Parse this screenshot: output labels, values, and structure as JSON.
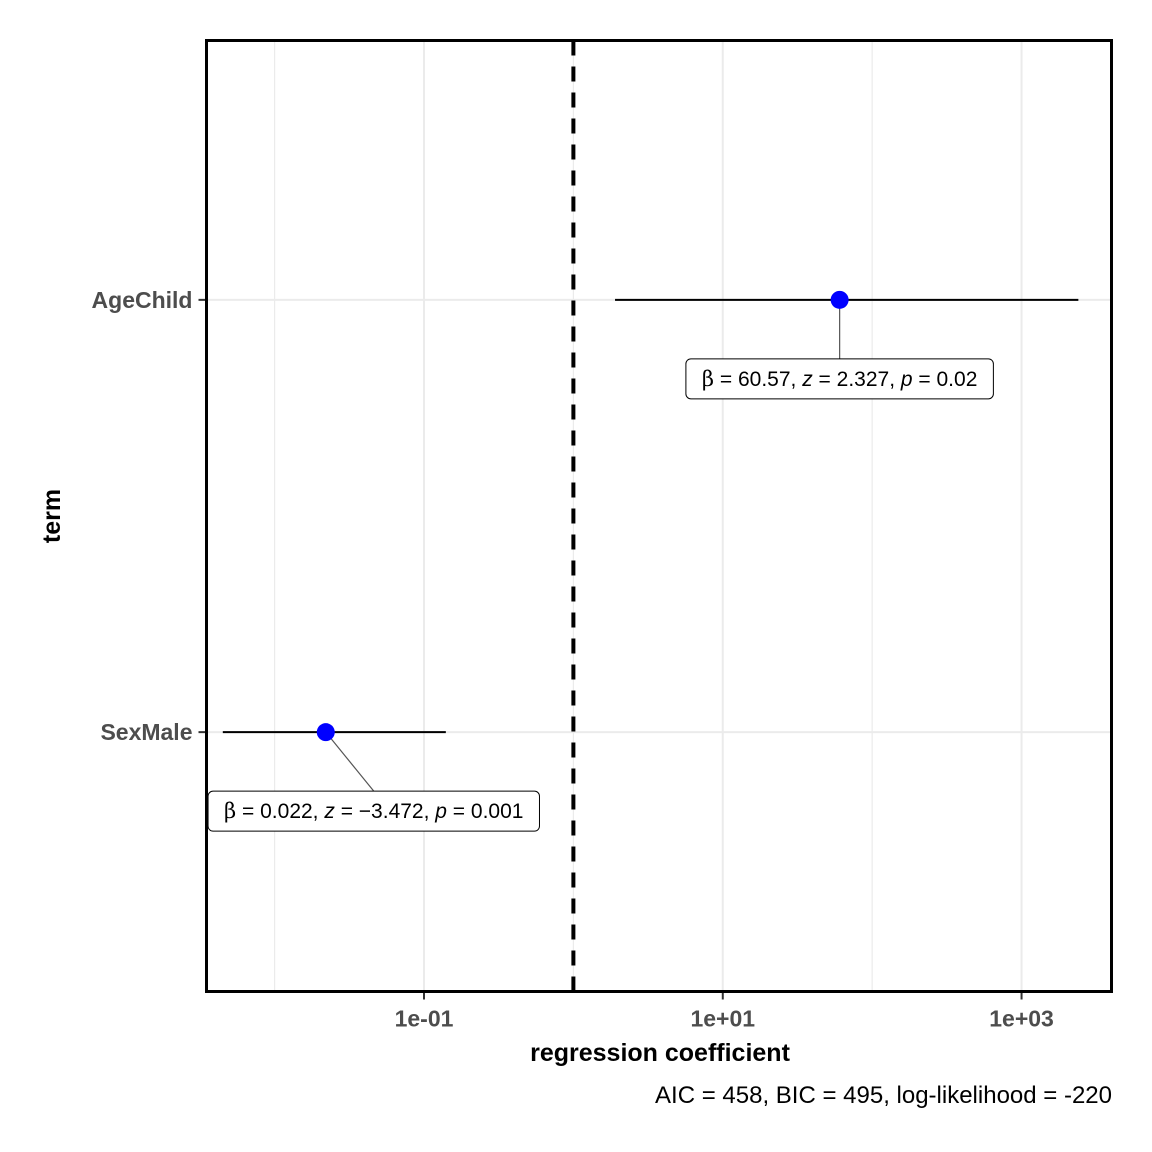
{
  "chart_data": {
    "type": "scatter",
    "xlabel": "regression coefficient",
    "ylabel": "term",
    "x_scale": "log10",
    "xlim": [
      0.0035,
      4000
    ],
    "x_ticks": [
      {
        "value": 0.1,
        "label": "1e-01"
      },
      {
        "value": 10,
        "label": "1e+01"
      },
      {
        "value": 1000,
        "label": "1e+03"
      }
    ],
    "x_minor_ticks": [
      0.01,
      1,
      100
    ],
    "categories": [
      "SexMale",
      "AgeChild"
    ],
    "reference_line": {
      "value": 1,
      "style": "dashed"
    },
    "points": [
      {
        "term": "AgeChild",
        "estimate": 60.57,
        "conf_low": 1.9,
        "conf_high": 2400,
        "label": {
          "beta": "60.57",
          "z": "2.327",
          "p": "0.02"
        }
      },
      {
        "term": "SexMale",
        "estimate": 0.022,
        "conf_low": 0.0045,
        "conf_high": 0.14,
        "label": {
          "beta": "0.022",
          "z": "−3.472",
          "p": "0.001"
        }
      }
    ],
    "point_color": "#0000ff",
    "grid": true,
    "caption": "AIC = 458, BIC = 495, log-likelihood = -220"
  }
}
